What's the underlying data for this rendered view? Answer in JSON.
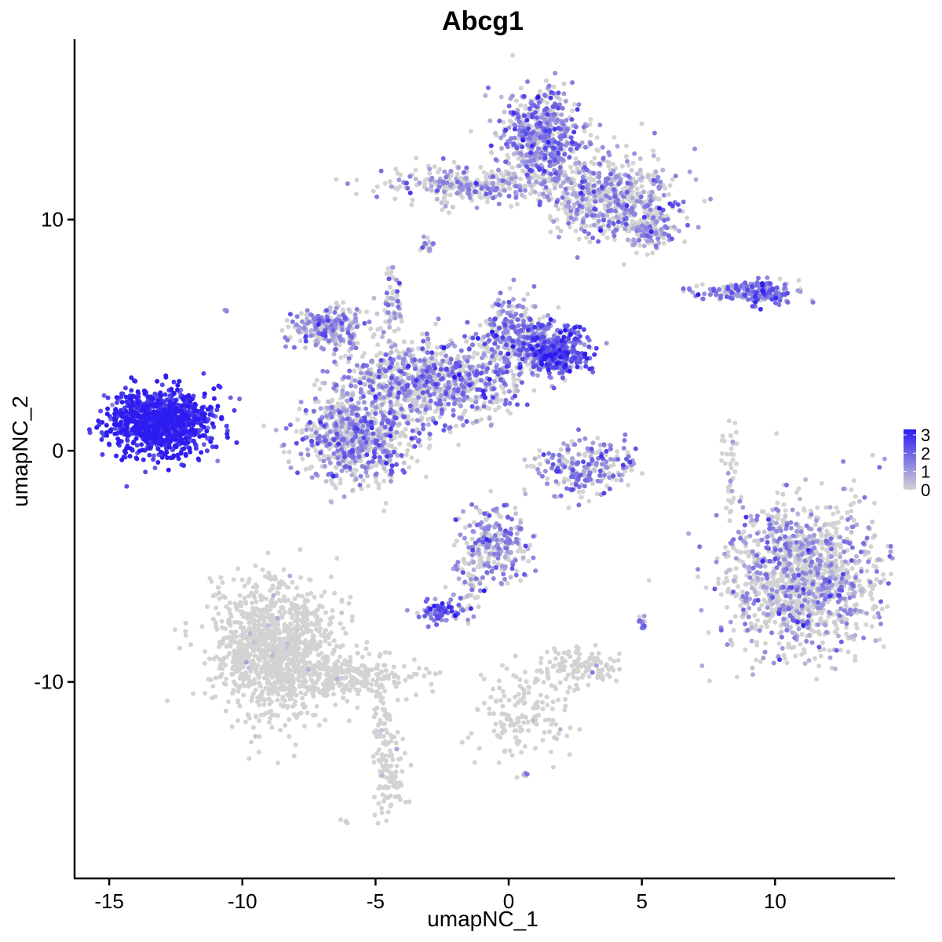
{
  "chart_data": {
    "type": "scatter",
    "title": "Abcg1",
    "xlabel": "umapNC_1",
    "ylabel": "umapNC_2",
    "xlim": [
      -16.3,
      14.5
    ],
    "ylim": [
      -18.5,
      17.8
    ],
    "x_ticks": [
      -15,
      -10,
      -5,
      0,
      5,
      10
    ],
    "x_tick_labels": [
      "-15",
      "-10",
      "-5",
      "0",
      "5",
      "10"
    ],
    "y_ticks": [
      -10,
      0,
      10
    ],
    "y_tick_labels": [
      "-10",
      "0",
      "10"
    ],
    "grid": false,
    "legend_position": "right",
    "color_scale": {
      "low_color": "#d3d3d3",
      "high_color": "#2d1cf0",
      "min": 0,
      "max": 3.3,
      "ticks": [
        0,
        1,
        2,
        3
      ],
      "tick_labels": [
        "0",
        "1",
        "2",
        "3"
      ]
    },
    "clusters": [
      {
        "center": [
          -13.2,
          1.2
        ],
        "spread": [
          0.9,
          0.7
        ],
        "n": 900,
        "mean": 3.0,
        "var": 0.35,
        "zero": 0.0
      },
      {
        "center": [
          -12.0,
          1.4
        ],
        "spread": [
          0.6,
          0.6
        ],
        "n": 150,
        "mean": 2.7,
        "var": 0.4,
        "zero": 0.0
      },
      {
        "center": [
          -8.8,
          -8.5
        ],
        "spread": [
          1.2,
          1.4
        ],
        "n": 1100,
        "mean": 0.1,
        "var": 0.2,
        "zero": 0.97
      },
      {
        "center": [
          -6.0,
          -9.8
        ],
        "spread": [
          1.4,
          0.4
        ],
        "n": 250,
        "mean": 0.1,
        "var": 0.2,
        "zero": 0.97
      },
      {
        "center": [
          -4.5,
          -13.8
        ],
        "spread": [
          0.3,
          1.0
        ],
        "n": 100,
        "mean": 0.1,
        "var": 0.1,
        "zero": 0.98
      },
      {
        "center": [
          -4.7,
          -11.6
        ],
        "spread": [
          0.2,
          0.7
        ],
        "n": 40,
        "mean": 0.1,
        "var": 0.1,
        "zero": 0.98
      },
      {
        "center": [
          -5.8,
          0.6
        ],
        "spread": [
          1.0,
          1.0
        ],
        "n": 700,
        "mean": 1.3,
        "var": 0.6,
        "zero": 0.45
      },
      {
        "center": [
          -6.7,
          5.3
        ],
        "spread": [
          0.7,
          0.5
        ],
        "n": 250,
        "mean": 1.2,
        "var": 0.5,
        "zero": 0.4
      },
      {
        "center": [
          -4.0,
          3.2
        ],
        "spread": [
          1.2,
          0.8
        ],
        "n": 350,
        "mean": 1.2,
        "var": 0.5,
        "zero": 0.45
      },
      {
        "center": [
          -1.8,
          3.0
        ],
        "spread": [
          1.2,
          0.9
        ],
        "n": 450,
        "mean": 1.4,
        "var": 0.5,
        "zero": 0.4
      },
      {
        "center": [
          0.3,
          5.0
        ],
        "spread": [
          0.6,
          0.8
        ],
        "n": 300,
        "mean": 1.4,
        "var": 0.5,
        "zero": 0.35
      },
      {
        "center": [
          1.8,
          4.3
        ],
        "spread": [
          0.6,
          0.5
        ],
        "n": 350,
        "mean": 2.0,
        "var": 0.5,
        "zero": 0.1
      },
      {
        "center": [
          -3.6,
          1.6
        ],
        "spread": [
          0.6,
          1.3
        ],
        "n": 100,
        "mean": 1.2,
        "var": 0.5,
        "zero": 0.5
      },
      {
        "center": [
          -4.4,
          6.3
        ],
        "spread": [
          0.2,
          1.0
        ],
        "n": 60,
        "mean": 1.0,
        "var": 0.5,
        "zero": 0.5
      },
      {
        "center": [
          1.2,
          13.5
        ],
        "spread": [
          0.8,
          1.0
        ],
        "n": 550,
        "mean": 1.3,
        "var": 0.5,
        "zero": 0.3
      },
      {
        "center": [
          -1.5,
          11.5
        ],
        "spread": [
          1.8,
          0.4
        ],
        "n": 300,
        "mean": 1.1,
        "var": 0.5,
        "zero": 0.5
      },
      {
        "center": [
          3.8,
          11.0
        ],
        "spread": [
          1.2,
          0.9
        ],
        "n": 550,
        "mean": 1.1,
        "var": 0.5,
        "zero": 0.5
      },
      {
        "center": [
          5.3,
          9.7
        ],
        "spread": [
          0.5,
          0.5
        ],
        "n": 150,
        "mean": 1.2,
        "var": 0.5,
        "zero": 0.4
      },
      {
        "center": [
          -3.1,
          8.9
        ],
        "spread": [
          0.15,
          0.2
        ],
        "n": 15,
        "mean": 1.2,
        "var": 0.5,
        "zero": 0.3
      },
      {
        "center": [
          8.9,
          6.9
        ],
        "spread": [
          1.1,
          0.2
        ],
        "n": 120,
        "mean": 1.4,
        "var": 0.5,
        "zero": 0.3
      },
      {
        "center": [
          9.7,
          6.8
        ],
        "spread": [
          0.4,
          0.3
        ],
        "n": 80,
        "mean": 1.8,
        "var": 0.5,
        "zero": 0.1
      },
      {
        "center": [
          11.0,
          -5.5
        ],
        "spread": [
          1.4,
          1.6
        ],
        "n": 1300,
        "mean": 1.0,
        "var": 0.5,
        "zero": 0.55
      },
      {
        "center": [
          -0.6,
          -4.0
        ],
        "spread": [
          0.6,
          0.8
        ],
        "n": 250,
        "mean": 1.2,
        "var": 0.5,
        "zero": 0.4
      },
      {
        "center": [
          -2.6,
          -6.9
        ],
        "spread": [
          0.4,
          0.2
        ],
        "n": 80,
        "mean": 1.8,
        "var": 0.6,
        "zero": 0.15
      },
      {
        "center": [
          -1.5,
          -5.8
        ],
        "spread": [
          0.3,
          0.8
        ],
        "n": 50,
        "mean": 1.0,
        "var": 0.5,
        "zero": 0.5
      },
      {
        "center": [
          2.8,
          -0.7
        ],
        "spread": [
          1.0,
          0.6
        ],
        "n": 220,
        "mean": 1.3,
        "var": 0.5,
        "zero": 0.35
      },
      {
        "center": [
          2.5,
          -9.3
        ],
        "spread": [
          0.8,
          0.4
        ],
        "n": 120,
        "mean": 0.2,
        "var": 0.3,
        "zero": 0.9
      },
      {
        "center": [
          0.5,
          -11.5
        ],
        "spread": [
          0.9,
          1.0
        ],
        "n": 150,
        "mean": 0.1,
        "var": 0.2,
        "zero": 0.95
      },
      {
        "center": [
          8.3,
          -0.8
        ],
        "spread": [
          0.15,
          1.0
        ],
        "n": 40,
        "mean": 0.3,
        "var": 0.4,
        "zero": 0.8
      },
      {
        "center": [
          5.0,
          -7.4
        ],
        "spread": [
          0.1,
          0.2
        ],
        "n": 12,
        "mean": 1.5,
        "var": 0.5,
        "zero": 0.3
      },
      {
        "center": [
          -10.6,
          6.0
        ],
        "spread": [
          0.05,
          0.05
        ],
        "n": 3,
        "mean": 1.0,
        "var": 0.3,
        "zero": 0.3
      },
      {
        "center": [
          -6.1,
          -16.0
        ],
        "spread": [
          0.1,
          0.1
        ],
        "n": 4,
        "mean": 0.5,
        "var": 0.3,
        "zero": 0.5
      },
      {
        "center": [
          0.6,
          -14.0
        ],
        "spread": [
          0.1,
          0.1
        ],
        "n": 5,
        "mean": 1.2,
        "var": 0.4,
        "zero": 0.3
      }
    ]
  }
}
